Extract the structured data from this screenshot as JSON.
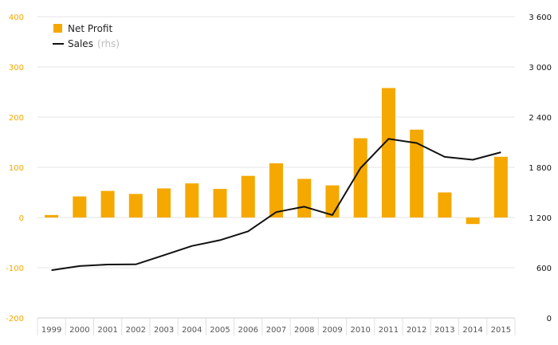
{
  "chart_data": {
    "type": "bar",
    "categories": [
      "1999",
      "2000",
      "2001",
      "2002",
      "2003",
      "2004",
      "2005",
      "2006",
      "2007",
      "2008",
      "2009",
      "2010",
      "2011",
      "2012",
      "2013",
      "2014",
      "2015"
    ],
    "series": [
      {
        "name": "Net Profit",
        "chart_type": "bar",
        "axis": "left",
        "color": "#f5a800",
        "values": [
          5,
          42,
          53,
          47,
          58,
          68,
          57,
          83,
          108,
          77,
          64,
          158,
          258,
          175,
          50,
          -13,
          121
        ]
      },
      {
        "name": "Sales",
        "chart_type": "line",
        "axis": "right",
        "color": "#111111",
        "values": [
          570,
          620,
          638,
          640,
          750,
          860,
          930,
          1035,
          1265,
          1330,
          1230,
          1790,
          2140,
          2090,
          1925,
          1890,
          1980
        ]
      }
    ],
    "left_axis": {
      "ylim": [
        -200,
        400
      ],
      "ticks": [
        "-200",
        "-100",
        "0",
        "100",
        "200",
        "300",
        "400"
      ],
      "color": "#f5a800"
    },
    "right_axis": {
      "ylim": [
        0,
        3600
      ],
      "ticks": [
        "0",
        "600",
        "1 200",
        "1 800",
        "2 400",
        "3 000",
        "3 600"
      ],
      "color": "#111111"
    },
    "legend": {
      "placement": "top-left",
      "items": [
        {
          "label": "Net Profit",
          "suffix": "",
          "marker": "square"
        },
        {
          "label": "Sales",
          "suffix": "(rhs)",
          "marker": "line"
        }
      ]
    },
    "title": "",
    "xlabel": "",
    "ylabel": "",
    "grid": true
  }
}
